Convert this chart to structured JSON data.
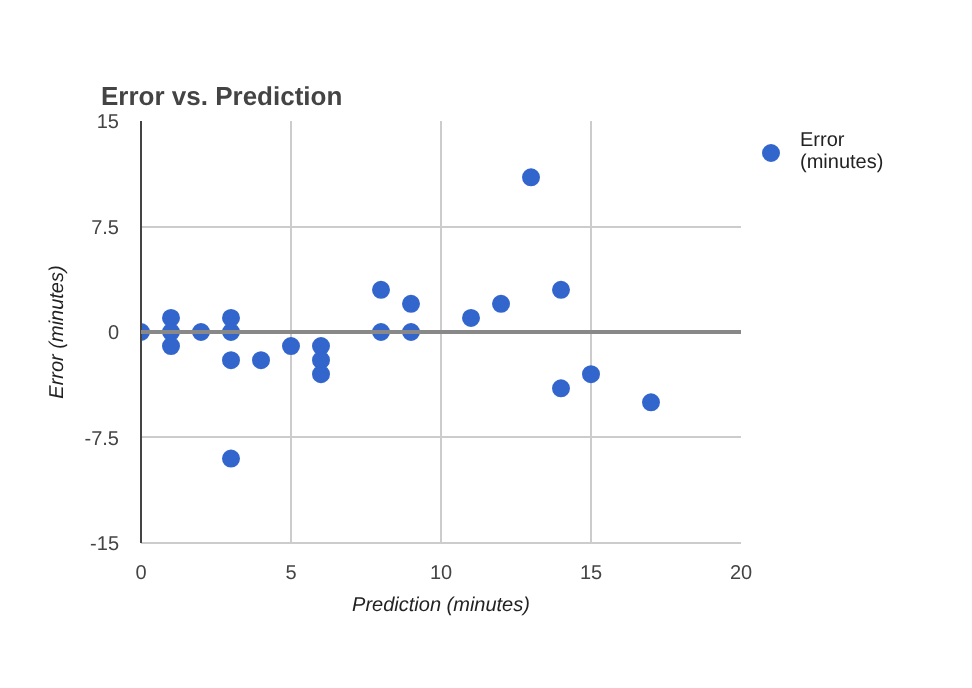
{
  "chart_data": {
    "type": "scatter",
    "title": "Error vs. Prediction",
    "xlabel": "Prediction (minutes)",
    "ylabel": "Error (minutes)",
    "x": [
      0,
      1,
      1,
      1,
      2,
      3,
      3,
      3,
      3,
      4,
      5,
      6,
      6,
      6,
      8,
      8,
      9,
      9,
      11,
      12,
      13,
      14,
      14,
      15,
      17
    ],
    "series": [
      {
        "name": "Error (minutes)",
        "color": "#3366cc",
        "values": [
          0,
          1,
          0,
          -1,
          0,
          1,
          0,
          -2,
          -9,
          -2,
          -1,
          -1,
          -2,
          -3,
          3,
          0,
          2,
          0,
          1,
          2,
          11,
          3,
          -4,
          -3,
          -5
        ]
      }
    ],
    "xlim": [
      0,
      20
    ],
    "xticks": [
      0,
      5,
      10,
      15,
      20
    ],
    "ylim": [
      -15,
      15
    ],
    "yticks": [
      -15,
      {
        "value": -7.5,
        "label": "-7.5"
      },
      0,
      {
        "value": 7.5,
        "label": "7.5"
      },
      15
    ],
    "ref_lines": [
      {
        "axis": "y",
        "value": 0,
        "color": "#888888"
      }
    ],
    "grid": true,
    "legend": "right",
    "marker": "circle"
  }
}
